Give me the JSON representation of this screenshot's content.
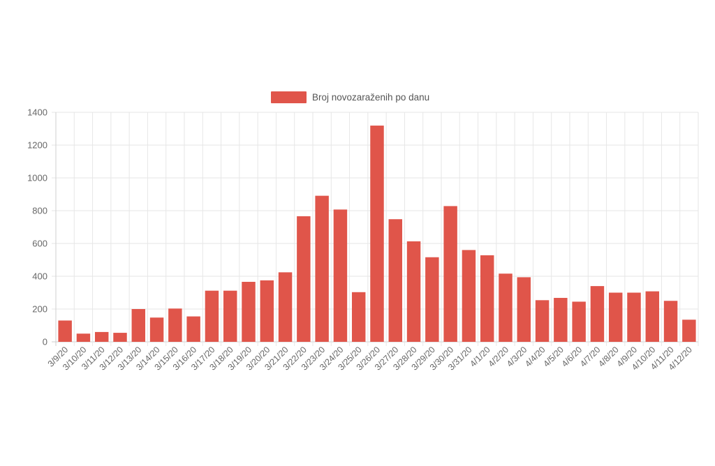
{
  "chart_data": {
    "type": "bar",
    "legend": {
      "label": "Broj novozaraženih po danu",
      "position": "top"
    },
    "color": "#e0554a",
    "categories": [
      "3/9/20",
      "3/10/20",
      "3/11/20",
      "3/12/20",
      "3/13/20",
      "3/14/20",
      "3/15/20",
      "3/16/20",
      "3/17/20",
      "3/18/20",
      "3/19/20",
      "3/20/20",
      "3/21/20",
      "3/22/20",
      "3/23/20",
      "3/24/20",
      "3/25/20",
      "3/26/20",
      "3/27/20",
      "3/28/20",
      "3/29/20",
      "3/30/20",
      "3/31/20",
      "4/1/20",
      "4/2/20",
      "4/3/20",
      "4/4/20",
      "4/5/20",
      "4/6/20",
      "4/7/20",
      "4/8/20",
      "4/9/20",
      "4/10/20",
      "4/11/20",
      "4/12/20"
    ],
    "series": [
      {
        "name": "Broj novozaraženih po danu",
        "values": [
          130,
          50,
          60,
          55,
          200,
          148,
          203,
          155,
          312,
          312,
          366,
          375,
          424,
          766,
          891,
          807,
          303,
          1319,
          748,
          613,
          516,
          828,
          560,
          528,
          416,
          394,
          254,
          268,
          245,
          340,
          300,
          300,
          308,
          250,
          135
        ]
      }
    ],
    "ylim": [
      0,
      1400
    ],
    "yticks": [
      0,
      200,
      400,
      600,
      800,
      1000,
      1200,
      1400
    ],
    "grid": true
  }
}
